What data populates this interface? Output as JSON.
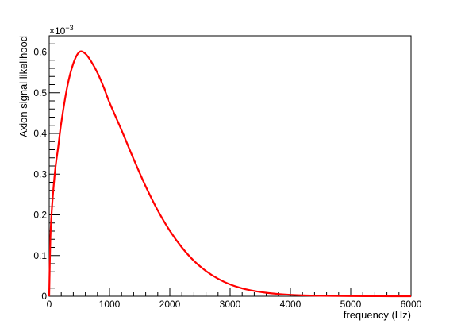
{
  "chart_data": {
    "type": "line",
    "title": "",
    "xlabel": "frequency (Hz)",
    "ylabel": "Axion signal likelihood",
    "y_exponent_label": "×10",
    "y_exponent_power": "−3",
    "xlim": [
      0,
      6000
    ],
    "ylim": [
      0,
      0.00064
    ],
    "x_ticks": [
      0,
      1000,
      2000,
      3000,
      4000,
      5000,
      6000
    ],
    "x_tick_labels": [
      "0",
      "1000",
      "2000",
      "3000",
      "4000",
      "5000",
      "6000"
    ],
    "y_ticks": [
      0,
      0.0001,
      0.0002,
      0.0003,
      0.0004,
      0.0005,
      0.0006
    ],
    "y_tick_labels": [
      "0",
      "0.1",
      "0.2",
      "0.3",
      "0.4",
      "0.5",
      "0.6"
    ],
    "grid": false,
    "series": [
      {
        "color": "#ff0000",
        "x": [
          0,
          20,
          50,
          100,
          150,
          200,
          300,
          400,
          500,
          600,
          700,
          800,
          900,
          1000,
          1200,
          1400,
          1600,
          1800,
          2000,
          2200,
          2400,
          2600,
          2800,
          3000,
          3200,
          3400,
          3600,
          3800,
          4000,
          4200,
          4500,
          5000,
          5500,
          6000
        ],
        "y": [
          0.0,
          0.000144,
          0.000226,
          0.000311,
          0.000367,
          0.000426,
          0.000515,
          0.000572,
          0.0006,
          0.000596,
          0.000576,
          0.000549,
          0.000515,
          0.000476,
          0.000408,
          0.000337,
          0.00027,
          0.000211,
          0.000161,
          0.00012,
          8.7e-05,
          6.2e-05,
          4.3e-05,
          2.9e-05,
          1.95e-05,
          1.3e-05,
          8.5e-06,
          5.5e-06,
          3.5e-06,
          2.2e-06,
          1.2e-06,
          4e-07,
          1e-07,
          0.0
        ]
      }
    ]
  }
}
